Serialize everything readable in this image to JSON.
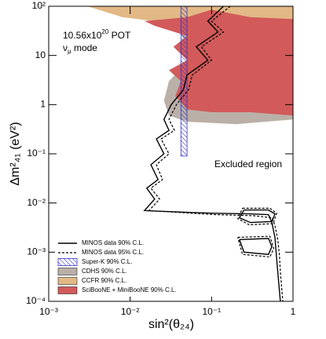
{
  "chart_data": {
    "type": "contour",
    "xlabel": "sin²(θ₂₄)",
    "ylabel": "Δm²₄₁ (eV²)",
    "log_x": true,
    "log_y": true,
    "xlim": [
      0.001,
      1
    ],
    "ylim": [
      0.0001,
      100
    ],
    "xticks": [
      {
        "value": 0.001,
        "label": "10⁻³"
      },
      {
        "value": 0.01,
        "label": "10⁻²"
      },
      {
        "value": 0.1,
        "label": "10⁻¹"
      },
      1
    ],
    "yticks": [
      {
        "value": 0.0001,
        "label": "10⁻⁴"
      },
      {
        "value": 0.001,
        "label": "10⁻³"
      },
      {
        "value": 0.01,
        "label": "10⁻²"
      },
      {
        "value": 0.1,
        "label": "10⁻¹"
      },
      1,
      10,
      {
        "value": 100,
        "label": "10²"
      }
    ],
    "legend": "lower left",
    "annotations": {
      "pot": [
        "10.56x10",
        "20",
        " POT"
      ],
      "mode": [
        "ν",
        "μ",
        " mode"
      ],
      "region": "Excluded region"
    },
    "series": [
      {
        "name": "MINOS data 90% C.L.",
        "color": "#000000",
        "style": "solid",
        "x": [
          0.14,
          0.09,
          0.12,
          0.065,
          0.09,
          0.05,
          0.045,
          0.032,
          0.026,
          0.03,
          0.021,
          0.026,
          0.018,
          0.022,
          0.016,
          0.02,
          0.015,
          0.1,
          0.3,
          0.5,
          0.55,
          0.6,
          0.62,
          0.65,
          0.7,
          null,
          0.25,
          0.5,
          0.6,
          0.55,
          0.3,
          0.22,
          0.25,
          null,
          0.22,
          0.5,
          0.55,
          0.5,
          0.25,
          0.22
        ],
        "values": [
          100,
          50,
          30,
          15,
          8,
          4,
          2,
          1,
          0.5,
          0.3,
          0.2,
          0.1,
          0.06,
          0.03,
          0.02,
          0.012,
          0.007,
          0.0062,
          0.006,
          0.0058,
          0.004,
          0.002,
          0.001,
          0.0004,
          0.0001,
          null,
          0.0072,
          0.0072,
          0.006,
          0.0042,
          0.004,
          0.005,
          0.0072,
          null,
          0.0018,
          0.0019,
          0.0013,
          0.0009,
          0.001,
          0.0018
        ]
      },
      {
        "name": "MINOS data 95% C.L.",
        "color": "#000000",
        "style": "dashed",
        "x": [
          0.17,
          0.1,
          0.14,
          0.075,
          0.1,
          0.058,
          0.052,
          0.037,
          0.03,
          0.035,
          0.024,
          0.03,
          0.021,
          0.025,
          0.018,
          0.023,
          0.017,
          0.11,
          0.33,
          0.55,
          0.6,
          0.65,
          0.68,
          0.7,
          0.75,
          null,
          0.24,
          0.52,
          0.63,
          0.57,
          0.29,
          0.21,
          0.24,
          null,
          0.21,
          0.52,
          0.58,
          0.52,
          0.24,
          0.21
        ],
        "values": [
          100,
          50,
          30,
          15,
          8,
          4,
          2,
          1,
          0.5,
          0.3,
          0.2,
          0.1,
          0.06,
          0.03,
          0.02,
          0.012,
          0.007,
          0.0058,
          0.0055,
          0.005,
          0.0035,
          0.0018,
          0.0009,
          0.0004,
          0.0001,
          null,
          0.0078,
          0.0078,
          0.0062,
          0.0038,
          0.0036,
          0.0048,
          0.0078,
          null,
          0.002,
          0.0021,
          0.0012,
          0.0008,
          0.0009,
          0.002
        ]
      },
      {
        "name": "Super-K 90% C.L.",
        "color": "#3333cc",
        "style": "hatch",
        "x": [
          0.042,
          0.05,
          0.05,
          0.042
        ],
        "values": [
          100,
          100,
          0.09,
          0.09
        ]
      },
      {
        "name": "CDHS 90% C.L.",
        "color": "#bab0a8",
        "style": "fill",
        "x": [
          0.04,
          0.06,
          0.03,
          0.026,
          0.03,
          0.05,
          0.2,
          1,
          1,
          0.1
        ],
        "values": [
          30,
          10,
          3,
          1.2,
          0.6,
          0.45,
          0.4,
          0.5,
          30,
          30
        ]
      },
      {
        "name": "CCFR 90% C.L.",
        "color": "#e2b986",
        "style": "fill",
        "x": [
          0.003,
          1,
          1,
          0.3,
          0.15,
          0.07,
          0.02,
          0.008
        ],
        "values": [
          100,
          100,
          20,
          15,
          25,
          40,
          50,
          60
        ]
      },
      {
        "name": "SciBooNE + MiniBooNE 90% C.L.",
        "color": "#d25a5a",
        "style": "fill",
        "x": [
          0.015,
          0.05,
          0.1,
          0.3,
          1,
          1,
          0.3,
          0.1,
          0.05,
          0.036,
          0.042,
          0.03,
          0.05,
          0.034,
          0.05,
          0.02
        ],
        "values": [
          50,
          60,
          85,
          60,
          55,
          0.6,
          0.7,
          0.7,
          0.8,
          1.5,
          3,
          5,
          8,
          15,
          25,
          40
        ]
      }
    ]
  }
}
